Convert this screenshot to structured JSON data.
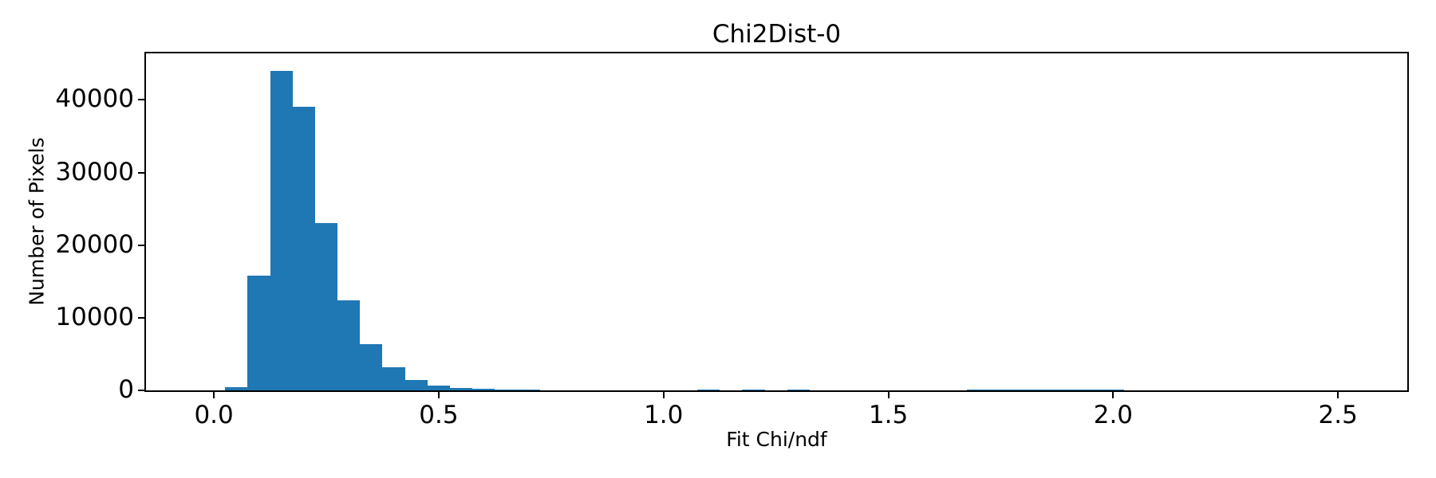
{
  "figure": {
    "background": "#ffffff",
    "text_color": "#000000",
    "spine_color": "#000000"
  },
  "chart_data": {
    "type": "bar",
    "subtype": "histogram",
    "title": "Chi2Dist-0",
    "xlabel": "Fit Chi/ndf",
    "ylabel": "Number of Pixels",
    "bar_color": "#1f77b4",
    "grid": false,
    "legend_position": "none",
    "bin_start": 0.025,
    "bin_width": 0.05,
    "counts": [
      400,
      15800,
      44000,
      39100,
      23000,
      12400,
      6400,
      3150,
      1400,
      650,
      300,
      220,
      150,
      150,
      0,
      0,
      0,
      0,
      0,
      0,
      0,
      160,
      0,
      160,
      0,
      160,
      0,
      0,
      0,
      0,
      0,
      0,
      0,
      120,
      120,
      120,
      120,
      120,
      120,
      120,
      0,
      0,
      0,
      0,
      0,
      0,
      0,
      0,
      0,
      0,
      0,
      0
    ],
    "xlim": [
      -0.151,
      2.654
    ],
    "ylim": [
      0,
      46400
    ],
    "xticks": {
      "values": [
        0.0,
        0.5,
        1.0,
        1.5,
        2.0,
        2.5
      ],
      "labels": [
        "0.0",
        "0.5",
        "1.0",
        "1.5",
        "2.0",
        "2.5"
      ]
    },
    "yticks": {
      "values": [
        0,
        10000,
        20000,
        30000,
        40000
      ],
      "labels": [
        "0",
        "10000",
        "20000",
        "30000",
        "40000"
      ]
    }
  }
}
